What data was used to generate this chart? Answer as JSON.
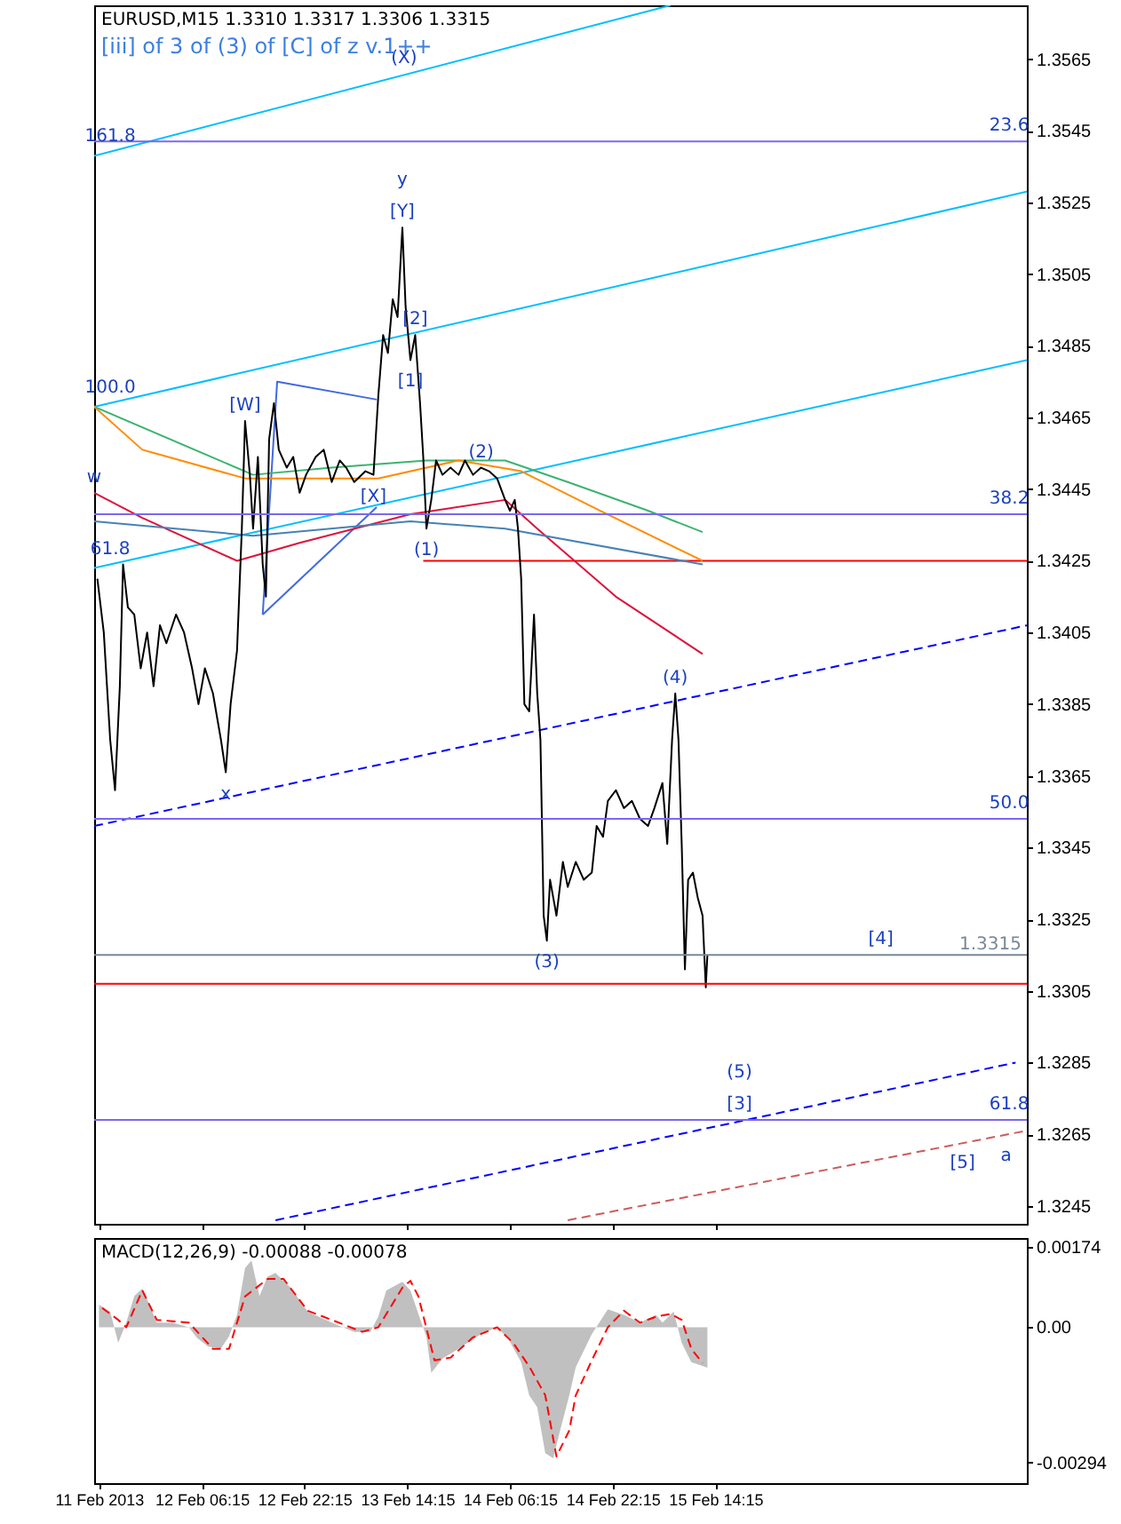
{
  "chart_data": [
    {
      "type": "line",
      "title": "EURUSD,M15  1.3310 1.3317 1.3306 1.3315",
      "subtitle": "[iii] of 3 of (3) of [C] of z v.1++",
      "xlim": [
        "2013-02-11T13:30",
        "2013-02-17T14:45"
      ],
      "xticks": [
        {
          "value": "2013-02-11T14:15",
          "label": null
        },
        {
          "value": "2013-02-12T06:15",
          "label": null
        },
        {
          "value": "2013-02-12T22:15",
          "label": null
        },
        {
          "value": "2013-02-13T14:15",
          "label": null
        },
        {
          "value": "2013-02-14T06:15",
          "label": null
        },
        {
          "value": "2013-02-14T22:15",
          "label": null
        },
        {
          "value": "2013-02-15T14:15",
          "label": null
        }
      ],
      "ylim": [
        1.324,
        1.358
      ],
      "yticks": [
        1.3245,
        1.3265,
        1.3285,
        1.3305,
        1.3325,
        1.3345,
        1.3365,
        1.3385,
        1.3405,
        1.3425,
        1.3445,
        1.3465,
        1.3485,
        1.3505,
        1.3525,
        1.3545,
        1.3565
      ],
      "tick_labels": "y",
      "series": [
        {
          "color": "#00bfff",
          "x": [
            "2013-02-11T13:30",
            "2013-02-15T07:15"
          ],
          "values": [
            1.3538,
            1.358
          ]
        },
        {
          "color": "#00bfff",
          "x": [
            "2013-02-11T13:30",
            "2013-02-17T14:45"
          ],
          "values": [
            1.3468,
            1.3528
          ]
        },
        {
          "color": "#00bfff",
          "x": [
            "2013-02-11T13:30",
            "2013-02-17T14:45"
          ],
          "values": [
            1.3423,
            1.3481
          ]
        },
        {
          "color": "#0000ff",
          "line_style": "dashed",
          "x": [
            "2013-02-11T13:30",
            "2013-02-17T14:45"
          ],
          "values": [
            1.3351,
            1.3407
          ]
        },
        {
          "color": "#0000ff",
          "line_style": "dashed",
          "x": [
            "2013-02-12T17:45",
            "2013-02-17T13:00"
          ],
          "values": [
            1.3241,
            1.3285
          ]
        },
        {
          "color": "#cd5c5c",
          "line_style": "dashed",
          "x": [
            "2013-02-14T15:15",
            "2013-02-17T14:45"
          ],
          "values": [
            1.3241,
            1.3266
          ]
        },
        {
          "color": "#4169e1",
          "x": [
            "2013-02-12T15:45",
            "2013-02-12T18:00",
            "2013-02-13T09:30"
          ],
          "values": [
            1.341,
            1.3475,
            1.347
          ]
        },
        {
          "color": "#4169e1",
          "x": [
            "2013-02-12T15:45",
            "2013-02-13T09:30"
          ],
          "values": [
            1.341,
            1.344
          ]
        },
        {
          "color": "#ff0000",
          "x": [
            "2013-02-13T16:45",
            "2013-02-17T14:45"
          ],
          "values": [
            1.3425,
            1.3425
          ]
        },
        {
          "color": "#3cb371",
          "x": [
            "2013-02-11T13:30",
            "2013-02-12T14:15",
            "2013-02-13T02:30",
            "2013-02-13T17:15",
            "2013-02-14T05:30",
            "2013-02-14T15:15",
            "2013-02-15T03:45",
            "2013-02-15T12:15"
          ],
          "values": [
            1.3468,
            1.3449,
            1.3451,
            1.3453,
            1.3453,
            1.3447,
            1.3439,
            1.3433
          ]
        },
        {
          "color": "#ff8c00",
          "x": [
            "2013-02-11T13:30",
            "2013-02-11T21:00",
            "2013-02-12T13:00",
            "2013-02-13T09:45",
            "2013-02-13T22:15",
            "2013-02-14T08:00",
            "2013-02-14T20:15",
            "2013-02-15T12:15"
          ],
          "values": [
            1.3468,
            1.3456,
            1.3448,
            1.3448,
            1.3453,
            1.345,
            1.3439,
            1.3425
          ]
        },
        {
          "color": "#dc143c",
          "x": [
            "2013-02-11T13:30",
            "2013-02-11T21:00",
            "2013-02-12T11:45",
            "2013-02-12T21:30",
            "2013-02-13T14:45",
            "2013-02-14T05:30",
            "2013-02-14T10:30",
            "2013-02-14T22:45",
            "2013-02-15T12:15"
          ],
          "values": [
            1.3444,
            1.3437,
            1.3425,
            1.343,
            1.3438,
            1.3442,
            1.3434,
            1.3415,
            1.3399
          ]
        },
        {
          "color": "#4682b4",
          "x": [
            "2013-02-11T13:30",
            "2013-02-12T14:15",
            "2013-02-13T14:45",
            "2013-02-14T05:30",
            "2013-02-15T12:15"
          ],
          "values": [
            1.3436,
            1.3432,
            1.3436,
            1.3434,
            1.3424
          ]
        },
        {
          "color": "#000000",
          "x": [
            "2013-02-11T14:00",
            "2013-02-11T15:00",
            "2013-02-11T16:00",
            "2013-02-11T16:45",
            "2013-02-11T17:30",
            "2013-02-11T18:00",
            "2013-02-11T18:45",
            "2013-02-11T19:45",
            "2013-02-11T20:45",
            "2013-02-11T21:45",
            "2013-02-11T22:45",
            "2013-02-11T23:45",
            "2013-02-12T00:45",
            "2013-02-12T02:15",
            "2013-02-12T03:30",
            "2013-02-12T04:45",
            "2013-02-12T05:45",
            "2013-02-12T06:45",
            "2013-02-12T08:00",
            "2013-02-12T09:15",
            "2013-02-12T10:00",
            "2013-02-12T10:45",
            "2013-02-12T11:45",
            "2013-02-12T12:30",
            "2013-02-12T13:00",
            "2013-02-12T13:45",
            "2013-02-12T14:15",
            "2013-02-12T15:00",
            "2013-02-12T15:45",
            "2013-02-12T16:15",
            "2013-02-12T16:45",
            "2013-02-12T17:30",
            "2013-02-12T18:15",
            "2013-02-12T19:30",
            "2013-02-12T20:30",
            "2013-02-12T21:30",
            "2013-02-12T22:30",
            "2013-02-13T00:00",
            "2013-02-13T01:15",
            "2013-02-13T02:30",
            "2013-02-13T03:45",
            "2013-02-13T04:45",
            "2013-02-13T06:00",
            "2013-02-13T07:45",
            "2013-02-13T09:00",
            "2013-02-13T09:45",
            "2013-02-13T10:30",
            "2013-02-13T11:15",
            "2013-02-13T12:00",
            "2013-02-13T12:45",
            "2013-02-13T13:30",
            "2013-02-13T14:00",
            "2013-02-13T14:45",
            "2013-02-13T15:30",
            "2013-02-13T16:15",
            "2013-02-13T16:45",
            "2013-02-13T17:15",
            "2013-02-13T18:00",
            "2013-02-13T18:45",
            "2013-02-13T19:45",
            "2013-02-13T21:00",
            "2013-02-13T22:15",
            "2013-02-13T23:15",
            "2013-02-14T00:30",
            "2013-02-14T01:45",
            "2013-02-14T03:00",
            "2013-02-14T04:15",
            "2013-02-14T05:30",
            "2013-02-14T06:15",
            "2013-02-14T07:00",
            "2013-02-14T07:30",
            "2013-02-14T08:00",
            "2013-02-14T08:30",
            "2013-02-14T09:15",
            "2013-02-14T10:00",
            "2013-02-14T10:30",
            "2013-02-14T11:00",
            "2013-02-14T11:30",
            "2013-02-14T12:00",
            "2013-02-14T12:30",
            "2013-02-14T13:30",
            "2013-02-14T14:30",
            "2013-02-14T15:15",
            "2013-02-14T16:30",
            "2013-02-14T17:45",
            "2013-02-14T19:00",
            "2013-02-14T19:45",
            "2013-02-14T20:45",
            "2013-02-14T21:30",
            "2013-02-14T22:45",
            "2013-02-15T00:00",
            "2013-02-15T01:15",
            "2013-02-15T02:30",
            "2013-02-15T03:45",
            "2013-02-15T04:45",
            "2013-02-15T06:00",
            "2013-02-15T06:45",
            "2013-02-15T07:30",
            "2013-02-15T08:00",
            "2013-02-15T08:30",
            "2013-02-15T09:00",
            "2013-02-15T09:30",
            "2013-02-15T10:00",
            "2013-02-15T10:45",
            "2013-02-15T11:30",
            "2013-02-15T12:15",
            "2013-02-15T12:45",
            "2013-02-15T13:00"
          ],
          "values": [
            1.342,
            1.3405,
            1.3375,
            1.3361,
            1.339,
            1.3424,
            1.3412,
            1.341,
            1.3395,
            1.3405,
            1.339,
            1.3407,
            1.3402,
            1.341,
            1.3405,
            1.3395,
            1.3385,
            1.3395,
            1.3388,
            1.3375,
            1.3366,
            1.3385,
            1.34,
            1.3434,
            1.3464,
            1.3449,
            1.3434,
            1.3454,
            1.3424,
            1.3415,
            1.3459,
            1.3469,
            1.3456,
            1.3451,
            1.3454,
            1.3444,
            1.3449,
            1.3454,
            1.3456,
            1.3447,
            1.3453,
            1.3451,
            1.3447,
            1.345,
            1.3449,
            1.3471,
            1.3488,
            1.3483,
            1.3498,
            1.3493,
            1.3518,
            1.3496,
            1.3481,
            1.3488,
            1.3469,
            1.3454,
            1.3434,
            1.3442,
            1.3453,
            1.3449,
            1.3451,
            1.3449,
            1.3453,
            1.3449,
            1.3451,
            1.345,
            1.3448,
            1.3442,
            1.3439,
            1.3442,
            1.3434,
            1.342,
            1.3385,
            1.3383,
            1.341,
            1.3388,
            1.3375,
            1.3326,
            1.3319,
            1.3336,
            1.3326,
            1.3341,
            1.3334,
            1.3341,
            1.3336,
            1.3338,
            1.3351,
            1.3348,
            1.3358,
            1.3361,
            1.3356,
            1.3358,
            1.3353,
            1.3351,
            1.3356,
            1.3363,
            1.3346,
            1.3375,
            1.3388,
            1.3375,
            1.3346,
            1.3311,
            1.3336,
            1.3338,
            1.3331,
            1.3326,
            1.3306,
            1.3315
          ]
        }
      ],
      "ref_lines": [
        {
          "axis": "y",
          "value": 1.3542,
          "color": "#7b68ee"
        },
        {
          "axis": "y",
          "value": 1.3438,
          "color": "#7b68ee"
        },
        {
          "axis": "y",
          "value": 1.3353,
          "color": "#7b68ee"
        },
        {
          "axis": "y",
          "value": 1.3269,
          "color": "#7b68ee"
        },
        {
          "axis": "y",
          "value": 1.3315,
          "label": "1.3315",
          "color": "#778899"
        },
        {
          "axis": "y",
          "value": 1.3307,
          "color": "#ff0000"
        }
      ],
      "annotations": [
        {
          "text": "161.8",
          "x": "2013-02-11T16:00",
          "y": 1.3539
        },
        {
          "text": "100.0",
          "x": "2013-02-11T16:00",
          "y": 1.3469
        },
        {
          "text": "61.8",
          "x": "2013-02-11T16:00",
          "y": 1.3424
        },
        {
          "text": "23.6",
          "x": "2013-02-17T12:00",
          "y": 1.3542
        },
        {
          "text": "38.2",
          "x": "2013-02-17T12:00",
          "y": 1.3438
        },
        {
          "text": "50.0",
          "x": "2013-02-17T12:00",
          "y": 1.3353
        },
        {
          "text": "61.8",
          "x": "2013-02-17T12:00",
          "y": 1.3269
        },
        {
          "text": "[Y]",
          "x": "2013-02-13T13:30",
          "y": 1.3518
        },
        {
          "text": "y",
          "x": "2013-02-13T13:30",
          "y": 1.3518
        },
        {
          "text": "(X)",
          "x": "2013-02-13T13:45",
          "y": 1.3561
        },
        {
          "text": "[2]",
          "x": "2013-02-13T15:30",
          "y": 1.3488
        },
        {
          "text": "[1]",
          "x": "2013-02-13T14:45",
          "y": 1.3481
        },
        {
          "text": "(2)",
          "x": "2013-02-14T01:45",
          "y": 1.3451
        },
        {
          "text": "(1)",
          "x": "2013-02-13T17:15",
          "y": 1.3434
        },
        {
          "text": "[X]",
          "x": "2013-02-13T09:00",
          "y": 1.3449
        },
        {
          "text": "[W]",
          "x": "2013-02-12T13:00",
          "y": 1.3464
        },
        {
          "text": "w",
          "x": "2013-02-11T13:30",
          "y": 1.3444
        },
        {
          "text": "x",
          "x": "2013-02-12T10:00",
          "y": 1.3366
        },
        {
          "text": "(3)",
          "x": "2013-02-14T12:00",
          "y": 1.3319
        },
        {
          "text": "(4)",
          "x": "2013-02-15T08:00",
          "y": 1.3388
        },
        {
          "text": "[4]",
          "x": "2013-02-16T16:00",
          "y": 1.3315
        },
        {
          "text": "[3]",
          "x": "2013-02-15T18:00",
          "y": 1.3269
        },
        {
          "text": "(5)",
          "x": "2013-02-15T18:00",
          "y": 1.3269
        },
        {
          "text": "[5]",
          "x": "2013-02-17T04:45",
          "y": 1.3263
        },
        {
          "text": "a",
          "x": "2013-02-17T11:30",
          "y": 1.3265
        }
      ]
    },
    {
      "type": "area",
      "title": "MACD(12,26,9) -0.00088 -0.00078",
      "xlim": [
        "2013-02-11T13:30",
        "2013-02-17T14:45"
      ],
      "xticks": [
        {
          "value": "2013-02-11T14:15",
          "label": "11 Feb 2013"
        },
        {
          "value": "2013-02-12T06:15",
          "label": "12 Feb 06:15"
        },
        {
          "value": "2013-02-12T22:15",
          "label": "12 Feb 22:15"
        },
        {
          "value": "2013-02-13T14:15",
          "label": "13 Feb 14:15"
        },
        {
          "value": "2013-02-14T06:15",
          "label": "14 Feb 06:15"
        },
        {
          "value": "2013-02-14T22:15",
          "label": "14 Feb 22:15"
        },
        {
          "value": "2013-02-15T14:15",
          "label": "15 Feb 14:15"
        }
      ],
      "ylim": [
        -0.00339,
        0.00194
      ],
      "yticks": [
        -0.00294,
        {
          "value": 0,
          "label": "0.00"
        },
        0.00174
      ],
      "series": [
        {
          "color": "#c0c0c0",
          "x": [
            "2013-02-11T14:15",
            "2013-02-11T16:00",
            "2013-02-11T17:15",
            "2013-02-11T18:30",
            "2013-02-11T19:45",
            "2013-02-11T21:00",
            "2013-02-11T22:00",
            "2013-02-11T23:15",
            "2013-02-12T01:45",
            "2013-02-12T04:15",
            "2013-02-12T05:30",
            "2013-02-12T07:15",
            "2013-02-12T09:15",
            "2013-02-12T10:30",
            "2013-02-12T11:45",
            "2013-02-12T13:00",
            "2013-02-12T14:00",
            "2013-02-12T15:15",
            "2013-02-12T16:30",
            "2013-02-12T17:45",
            "2013-02-12T20:15",
            "2013-02-12T22:45",
            "2013-02-13T02:30",
            "2013-02-13T06:00",
            "2013-02-13T08:30",
            "2013-02-13T09:45",
            "2013-02-13T11:00",
            "2013-02-13T13:30",
            "2013-02-13T14:45",
            "2013-02-13T16:00",
            "2013-02-13T17:15",
            "2013-02-13T18:00",
            "2013-02-13T19:45",
            "2013-02-13T22:00",
            "2013-02-14T01:45",
            "2013-02-14T04:15",
            "2013-02-14T06:00",
            "2013-02-14T08:00",
            "2013-02-14T09:15",
            "2013-02-14T10:30",
            "2013-02-14T11:45",
            "2013-02-14T13:00",
            "2013-02-14T14:00",
            "2013-02-14T15:30",
            "2013-02-14T16:30",
            "2013-02-14T19:00",
            "2013-02-14T21:30",
            "2013-02-15T00:00",
            "2013-02-15T02:30",
            "2013-02-15T05:00",
            "2013-02-15T06:00",
            "2013-02-15T07:45",
            "2013-02-15T09:00",
            "2013-02-15T10:30",
            "2013-02-15T13:00"
          ],
          "values": [
            0.00049,
            0.00034,
            -0.00034,
            0.0001,
            0.00068,
            0.00084,
            0.00053,
            0.0001,
            0.0001,
            0,
            -0.00023,
            -0.00042,
            -0.00046,
            -0.0002,
            0.00027,
            0.00129,
            0.00145,
            0.00068,
            0.0011,
            0.00118,
            0.00084,
            0.00034,
            0.0001,
            -0.0001,
            -0.0001,
            0.00023,
            0.0008,
            0.00099,
            0.0008,
            0.00029,
            -0.00021,
            -0.00099,
            -0.00068,
            -0.00049,
            -0.00015,
            0,
            -0.00025,
            -0.00076,
            -0.00148,
            -0.00174,
            -0.00274,
            -0.00285,
            -0.00228,
            -0.00148,
            -0.00087,
            -0.00015,
            0.00039,
            0.00027,
            0.0001,
            0.00027,
            0.0001,
            0.00034,
            -0.00034,
            -0.00076,
            -0.00088
          ]
        },
        {
          "type": "line",
          "color": "#ff0000",
          "line_style": "dashed",
          "x": [
            "2013-02-11T14:45",
            "2013-02-11T17:15",
            "2013-02-11T18:30",
            "2013-02-11T21:00",
            "2013-02-11T23:15",
            "2013-02-12T04:15",
            "2013-02-12T08:00",
            "2013-02-12T10:30",
            "2013-02-12T13:00",
            "2013-02-12T16:30",
            "2013-02-12T19:00",
            "2013-02-12T22:45",
            "2013-02-13T02:30",
            "2013-02-13T07:15",
            "2013-02-13T09:45",
            "2013-02-13T13:30",
            "2013-02-13T14:45",
            "2013-02-13T16:00",
            "2013-02-13T18:30",
            "2013-02-13T21:00",
            "2013-02-14T00:30",
            "2013-02-14T04:15",
            "2013-02-14T06:45",
            "2013-02-14T09:15",
            "2013-02-14T11:45",
            "2013-02-14T13:30",
            "2013-02-14T15:30",
            "2013-02-14T16:30",
            "2013-02-14T19:00",
            "2013-02-14T21:30",
            "2013-02-15T00:00",
            "2013-02-15T02:30",
            "2013-02-15T05:00",
            "2013-02-15T07:15",
            "2013-02-15T09:00",
            "2013-02-15T10:30",
            "2013-02-15T12:15"
          ],
          "values": [
            0.00042,
            0.00016,
            0,
            0.0008,
            0.00016,
            0.0001,
            -0.00047,
            -0.00047,
            0.00067,
            0.00105,
            0.00105,
            0.00036,
            0.00016,
            -0.0001,
            0,
            0.00086,
            0.00101,
            0.00067,
            -0.00072,
            -0.00066,
            -0.00022,
            0,
            -0.00034,
            -0.00085,
            -0.00148,
            -0.00281,
            -0.00224,
            -0.00148,
            -0.00072,
            0,
            0.00036,
            0.0001,
            0.00023,
            0.00029,
            0.00016,
            -0.00047,
            -0.00078
          ]
        }
      ]
    }
  ]
}
